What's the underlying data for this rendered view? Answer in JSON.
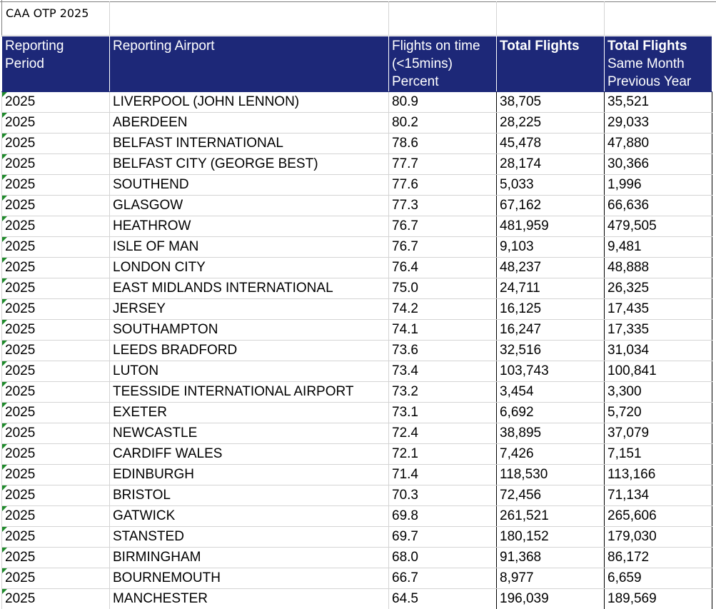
{
  "sheet": {
    "title": "CAA OTP 2025"
  },
  "header": {
    "period": [
      "Reporting",
      "Period"
    ],
    "airport": [
      "Reporting Airport"
    ],
    "ontime": [
      "Flights on time",
      "(<15mins)",
      "Percent"
    ],
    "total": [
      "Total Flights"
    ],
    "prev": [
      "Total Flights",
      "Same Month",
      "Previous Year"
    ]
  },
  "colors": {
    "header_bg": "#1d2878",
    "header_text": "#ffffff",
    "marker": "#1e8a2a"
  },
  "rows": [
    {
      "period": "2025",
      "airport": "LIVERPOOL (JOHN LENNON)",
      "ontime": "80.9",
      "total": "38,705",
      "prev": "35,521"
    },
    {
      "period": "2025",
      "airport": "ABERDEEN",
      "ontime": "80.2",
      "total": "28,225",
      "prev": "29,033"
    },
    {
      "period": "2025",
      "airport": "BELFAST INTERNATIONAL",
      "ontime": "78.6",
      "total": "45,478",
      "prev": "47,880"
    },
    {
      "period": "2025",
      "airport": "BELFAST CITY (GEORGE BEST)",
      "ontime": "77.7",
      "total": "28,174",
      "prev": "30,366"
    },
    {
      "period": "2025",
      "airport": "SOUTHEND",
      "ontime": "77.6",
      "total": "5,033",
      "prev": "1,996"
    },
    {
      "period": "2025",
      "airport": "GLASGOW",
      "ontime": "77.3",
      "total": "67,162",
      "prev": "66,636"
    },
    {
      "period": "2025",
      "airport": "HEATHROW",
      "ontime": "76.7",
      "total": "481,959",
      "prev": "479,505"
    },
    {
      "period": "2025",
      "airport": "ISLE OF MAN",
      "ontime": "76.7",
      "total": "9,103",
      "prev": "9,481"
    },
    {
      "period": "2025",
      "airport": "LONDON CITY",
      "ontime": "76.4",
      "total": "48,237",
      "prev": "48,888"
    },
    {
      "period": "2025",
      "airport": "EAST MIDLANDS INTERNATIONAL",
      "ontime": "75.0",
      "total": "24,711",
      "prev": "26,325"
    },
    {
      "period": "2025",
      "airport": "JERSEY",
      "ontime": "74.2",
      "total": "16,125",
      "prev": "17,435"
    },
    {
      "period": "2025",
      "airport": "SOUTHAMPTON",
      "ontime": "74.1",
      "total": "16,247",
      "prev": "17,335"
    },
    {
      "period": "2025",
      "airport": "LEEDS BRADFORD",
      "ontime": "73.6",
      "total": "32,516",
      "prev": "31,034"
    },
    {
      "period": "2025",
      "airport": "LUTON",
      "ontime": "73.4",
      "total": "103,743",
      "prev": "100,841"
    },
    {
      "period": "2025",
      "airport": "TEESSIDE INTERNATIONAL AIRPORT",
      "ontime": "73.2",
      "total": "3,454",
      "prev": "3,300"
    },
    {
      "period": "2025",
      "airport": "EXETER",
      "ontime": "73.1",
      "total": "6,692",
      "prev": "5,720"
    },
    {
      "period": "2025",
      "airport": "NEWCASTLE",
      "ontime": "72.4",
      "total": "38,895",
      "prev": "37,079"
    },
    {
      "period": "2025",
      "airport": "CARDIFF WALES",
      "ontime": "72.1",
      "total": "7,426",
      "prev": "7,151"
    },
    {
      "period": "2025",
      "airport": "EDINBURGH",
      "ontime": "71.4",
      "total": "118,530",
      "prev": "113,166"
    },
    {
      "period": "2025",
      "airport": "BRISTOL",
      "ontime": "70.3",
      "total": "72,456",
      "prev": "71,134"
    },
    {
      "period": "2025",
      "airport": "GATWICK",
      "ontime": "69.8",
      "total": "261,521",
      "prev": "265,606"
    },
    {
      "period": "2025",
      "airport": "STANSTED",
      "ontime": "69.7",
      "total": "180,152",
      "prev": "179,030"
    },
    {
      "period": "2025",
      "airport": "BIRMINGHAM",
      "ontime": "68.0",
      "total": "91,368",
      "prev": "86,172"
    },
    {
      "period": "2025",
      "airport": "BOURNEMOUTH",
      "ontime": "66.7",
      "total": "8,977",
      "prev": "6,659"
    },
    {
      "period": "2025",
      "airport": "MANCHESTER",
      "ontime": "64.5",
      "total": "196,039",
      "prev": "189,569"
    }
  ]
}
